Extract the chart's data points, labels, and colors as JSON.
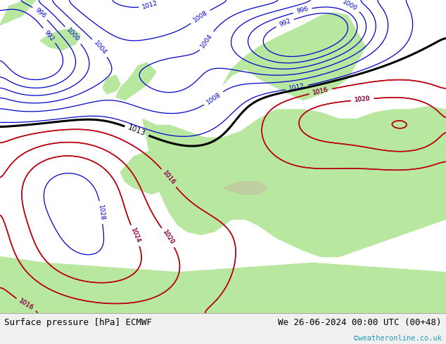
{
  "title_left": "Surface pressure [hPa] ECMWF",
  "title_right": "We 26-06-2024 00:00 UTC (00+48)",
  "copyright": "©weatheronline.co.uk",
  "fig_width": 6.34,
  "fig_height": 4.9,
  "dpi": 100,
  "ocean_color": "#c8daf0",
  "land_color": "#b8e8a0",
  "mountain_color": "#c8b8a0",
  "bottom_bar_color": "#f0f0f0",
  "text_color_black": "#000000",
  "text_color_blue": "#0000cc",
  "text_color_red": "#cc0000",
  "text_color_cyan": "#2299bb",
  "contour_blue": "#0000cc",
  "contour_black": "#000000",
  "contour_red": "#cc0000"
}
